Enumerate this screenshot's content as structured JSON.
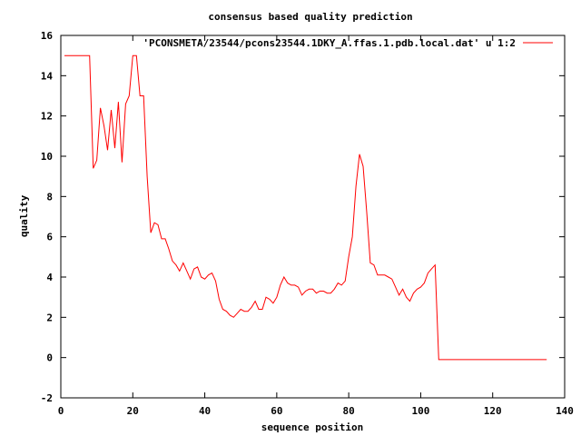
{
  "chart_data": {
    "type": "line",
    "title": "consensus based quality prediction",
    "xlabel": "sequence position",
    "ylabel": "quality",
    "xlim": [
      0,
      140
    ],
    "ylim": [
      -2,
      16
    ],
    "xticks": [
      0,
      20,
      40,
      60,
      80,
      100,
      120,
      140
    ],
    "yticks": [
      -2,
      0,
      2,
      4,
      6,
      8,
      10,
      12,
      14,
      16
    ],
    "grid": false,
    "legend_position": "top-right",
    "series": [
      {
        "name": "'PCONSMETA/23544/pcons23544.1DKY_A.ffas.1.pdb.local.dat' u 1:2",
        "color": "#ff0000",
        "x_start": 1,
        "values": [
          15,
          15,
          15,
          15,
          15,
          15,
          15,
          15,
          9.4,
          9.8,
          12.4,
          11.5,
          10.3,
          12.3,
          10.4,
          12.7,
          9.7,
          12.6,
          13,
          15,
          15,
          13,
          13,
          9,
          6.2,
          6.7,
          6.6,
          5.9,
          5.9,
          5.4,
          4.8,
          4.6,
          4.3,
          4.7,
          4.3,
          3.9,
          4.4,
          4.5,
          4.0,
          3.9,
          4.1,
          4.2,
          3.8,
          2.9,
          2.4,
          2.3,
          2.1,
          2.0,
          2.2,
          2.4,
          2.3,
          2.3,
          2.5,
          2.8,
          2.4,
          2.4,
          3.0,
          2.9,
          2.7,
          3.0,
          3.6,
          4.0,
          3.7,
          3.6,
          3.6,
          3.5,
          3.1,
          3.3,
          3.4,
          3.4,
          3.2,
          3.3,
          3.3,
          3.2,
          3.2,
          3.4,
          3.7,
          3.6,
          3.8,
          5.0,
          6.0,
          8.5,
          10.1,
          9.5,
          7.2,
          4.7,
          4.6,
          4.1,
          4.1,
          4.1,
          4.0,
          3.9,
          3.5,
          3.1,
          3.4,
          3.0,
          2.8,
          3.2,
          3.4,
          3.5,
          3.7,
          4.2,
          4.4,
          4.6,
          -0.1,
          -0.1,
          -0.1,
          -0.1,
          -0.1,
          -0.1,
          -0.1,
          -0.1,
          -0.1,
          -0.1,
          -0.1,
          -0.1,
          -0.1,
          -0.1,
          -0.1,
          -0.1,
          -0.1,
          -0.1,
          -0.1,
          -0.1,
          -0.1,
          -0.1,
          -0.1,
          -0.1,
          -0.1,
          -0.1,
          -0.1,
          -0.1,
          -0.1,
          -0.1,
          -0.1
        ]
      }
    ]
  }
}
